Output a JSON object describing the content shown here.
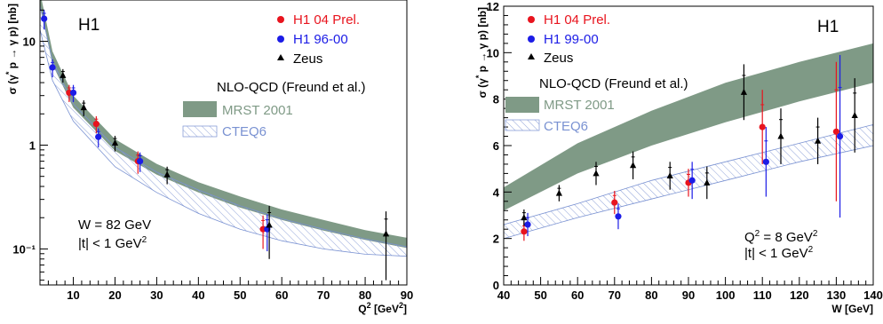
{
  "colors": {
    "h1_new": "#e8141e",
    "h1_old": "#1c1ce6",
    "zeus": "#000000",
    "mrst": "#7f9a86",
    "cteq": "#7a92d2",
    "background": "#ffffff"
  },
  "chart_data": [
    {
      "type": "scatter",
      "experiment": "H1",
      "xlabel": "Q² [GeV²]",
      "ylabel": "σ (γ* p → γ p) [nb]",
      "xlim": [
        2,
        90
      ],
      "ylim": [
        0.045,
        25
      ],
      "yscale": "log",
      "xticks": [
        "10",
        "20",
        "30",
        "40",
        "50",
        "60",
        "70",
        "80",
        "90"
      ],
      "yticks": [
        "10⁻¹",
        "1",
        "10"
      ],
      "legend": {
        "position": "top-right",
        "entries": [
          "H1 04 Prel.",
          "H1 96-00",
          "Zeus"
        ]
      },
      "theory_title": "NLO-QCD (Freund et al.)",
      "theory_labels": [
        "MRST 2001",
        "CTEQ6"
      ],
      "annotations": [
        "W = 82 GeV",
        "|t| < 1 GeV²"
      ],
      "series": [
        {
          "name": "H1 04 Prel.",
          "color": "red",
          "marker": "circle",
          "points": [
            [
              9,
              3.2,
              0.6
            ],
            [
              15.5,
              1.6,
              0.3
            ],
            [
              25.5,
              0.7,
              0.17
            ],
            [
              55.5,
              0.155,
              0.055
            ]
          ]
        },
        {
          "name": "H1 96-00",
          "color": "blue",
          "marker": "circle",
          "points": [
            [
              3,
              16.5,
              3.5
            ],
            [
              5,
              5.6,
              1.1
            ],
            [
              10,
              3.2,
              0.6
            ],
            [
              16,
              1.2,
              0.25
            ],
            [
              26,
              0.7,
              0.15
            ],
            [
              56.5,
              0.155,
              0.06
            ]
          ]
        },
        {
          "name": "Zeus",
          "color": "black",
          "marker": "triangle",
          "points": [
            [
              7.5,
              4.7,
              0.7
            ],
            [
              12.5,
              2.3,
              0.4
            ],
            [
              20,
              1.05,
              0.18
            ],
            [
              32.5,
              0.52,
              0.1
            ],
            [
              57,
              0.17,
              0.09
            ],
            [
              85,
              0.14,
              0.09
            ]
          ]
        }
      ],
      "bands": [
        {
          "name": "MRST 2001",
          "x": [
            2,
            5,
            10,
            20,
            30,
            40,
            50,
            60,
            70,
            80,
            90
          ],
          "low": [
            22.0,
            6.0,
            2.3,
            0.88,
            0.52,
            0.35,
            0.25,
            0.19,
            0.15,
            0.122,
            0.102
          ],
          "high": [
            30.0,
            8.0,
            3.0,
            1.14,
            0.66,
            0.44,
            0.32,
            0.24,
            0.19,
            0.152,
            0.128
          ]
        },
        {
          "name": "CTEQ6",
          "x": [
            2,
            5,
            10,
            20,
            30,
            40,
            50,
            60,
            70,
            80,
            90
          ],
          "low": [
            13.0,
            4.2,
            1.7,
            0.62,
            0.35,
            0.22,
            0.155,
            0.12,
            0.1,
            0.089,
            0.085
          ],
          "high": [
            22.0,
            6.5,
            2.5,
            0.95,
            0.55,
            0.37,
            0.26,
            0.195,
            0.155,
            0.125,
            0.105
          ]
        }
      ]
    },
    {
      "type": "scatter",
      "experiment": "H1",
      "xlabel": "W [GeV]",
      "ylabel": "σ (γ* p → γ p) [nb]",
      "xlim": [
        40,
        140
      ],
      "ylim": [
        0,
        12
      ],
      "xticks": [
        "40",
        "50",
        "60",
        "70",
        "80",
        "90",
        "100",
        "110",
        "120",
        "130",
        "140"
      ],
      "yticks": [
        "0",
        "2",
        "4",
        "6",
        "8",
        "10",
        "12"
      ],
      "legend": {
        "position": "top-left",
        "entries": [
          "H1 04 Prel.",
          "H1 99-00",
          "Zeus"
        ]
      },
      "theory_title": "NLO-QCD (Freund et al.)",
      "theory_labels": [
        "MRST 2001",
        "CTEQ6"
      ],
      "annotations": [
        "Q² = 8 GeV²",
        "|t| < 1 GeV²"
      ],
      "series": [
        {
          "name": "H1 04 Prel.",
          "color": "red",
          "marker": "circle",
          "points": [
            [
              45.5,
              2.3,
              0.4
            ],
            [
              70,
              3.55,
              0.5
            ],
            [
              90,
              4.4,
              0.6
            ],
            [
              110,
              6.8,
              1.6
            ],
            [
              130,
              6.6,
              3.0
            ]
          ]
        },
        {
          "name": "H1 99-00",
          "color": "blue",
          "marker": "circle",
          "points": [
            [
              46.5,
              2.6,
              0.5
            ],
            [
              71,
              2.95,
              0.55
            ],
            [
              91,
              4.5,
              0.8
            ],
            [
              111,
              5.3,
              1.5
            ],
            [
              131,
              6.4,
              3.5
            ]
          ]
        },
        {
          "name": "Zeus",
          "color": "black",
          "marker": "triangle",
          "points": [
            [
              45.5,
              2.9,
              0.35
            ],
            [
              55,
              3.95,
              0.35
            ],
            [
              65,
              4.8,
              0.5
            ],
            [
              75,
              5.15,
              0.6
            ],
            [
              85,
              4.7,
              0.6
            ],
            [
              95,
              4.4,
              0.7
            ],
            [
              105,
              8.3,
              1.2
            ],
            [
              115,
              6.4,
              1.2
            ],
            [
              125,
              6.2,
              1.0
            ],
            [
              135,
              7.3,
              1.6
            ]
          ]
        }
      ],
      "bands": [
        {
          "name": "MRST 2001",
          "x": [
            40,
            60,
            80,
            100,
            120,
            140
          ],
          "low": [
            3.2,
            4.8,
            6.0,
            7.0,
            7.9,
            8.7
          ],
          "high": [
            4.2,
            6.1,
            7.5,
            8.7,
            9.6,
            10.4
          ]
        },
        {
          "name": "CTEQ6",
          "x": [
            40,
            60,
            80,
            100,
            120,
            140
          ],
          "low": [
            2.0,
            2.9,
            3.7,
            4.5,
            5.3,
            6.0
          ],
          "high": [
            2.6,
            3.5,
            4.5,
            5.3,
            6.1,
            6.9
          ]
        }
      ]
    }
  ]
}
